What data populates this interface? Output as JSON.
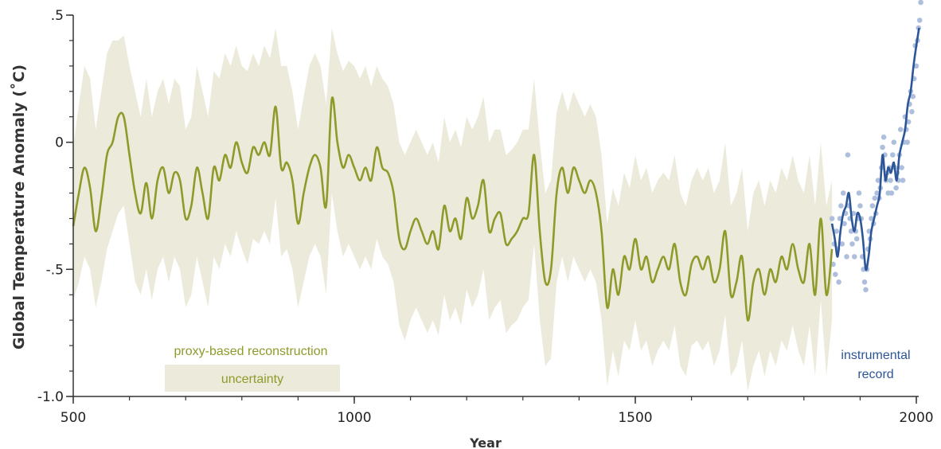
{
  "chart_data": {
    "type": "line",
    "title": "",
    "xlabel": "Year",
    "ylabel": "Global Temperature Anomaly (˚C)",
    "xlim": [
      500,
      2010
    ],
    "ylim": [
      -1.0,
      0.5
    ],
    "x_ticks": [
      500,
      1000,
      1500,
      2000
    ],
    "x_tick_labels": [
      "500",
      "1000",
      "1500",
      "2000"
    ],
    "y_ticks": [
      0.5,
      0,
      -0.5,
      -1.0
    ],
    "y_tick_labels": [
      ".5",
      "0",
      "-.5",
      "-1.0"
    ],
    "grid": false,
    "colors": {
      "proxy": "#8f9a2a",
      "uncertainty": "#ecebdb",
      "instrumental": "#2c5697",
      "instrumental_points": "#aebfde",
      "axis": "#333333"
    },
    "series": [
      {
        "name": "proxy-based reconstruction",
        "kind": "line",
        "x": [
          500,
          510,
          520,
          530,
          540,
          550,
          560,
          570,
          580,
          590,
          600,
          610,
          620,
          630,
          640,
          650,
          660,
          670,
          680,
          690,
          700,
          710,
          720,
          730,
          740,
          750,
          760,
          770,
          780,
          790,
          800,
          810,
          820,
          830,
          840,
          850,
          860,
          870,
          880,
          890,
          900,
          910,
          920,
          930,
          940,
          950,
          960,
          970,
          980,
          990,
          1000,
          1010,
          1020,
          1030,
          1040,
          1050,
          1060,
          1070,
          1080,
          1090,
          1100,
          1110,
          1120,
          1130,
          1140,
          1150,
          1160,
          1170,
          1180,
          1190,
          1200,
          1210,
          1220,
          1230,
          1240,
          1250,
          1260,
          1270,
          1280,
          1290,
          1300,
          1310,
          1320,
          1330,
          1340,
          1350,
          1360,
          1370,
          1380,
          1390,
          1400,
          1410,
          1420,
          1430,
          1440,
          1450,
          1460,
          1470,
          1480,
          1490,
          1500,
          1510,
          1520,
          1530,
          1540,
          1550,
          1560,
          1570,
          1580,
          1590,
          1600,
          1610,
          1620,
          1630,
          1640,
          1650,
          1660,
          1670,
          1680,
          1690,
          1700,
          1710,
          1720,
          1730,
          1740,
          1750,
          1760,
          1770,
          1780,
          1790,
          1800,
          1810,
          1820,
          1830,
          1840,
          1850
        ],
        "y": [
          -0.33,
          -0.2,
          -0.1,
          -0.18,
          -0.35,
          -0.22,
          -0.05,
          0.0,
          0.1,
          0.1,
          -0.05,
          -0.2,
          -0.28,
          -0.16,
          -0.3,
          -0.15,
          -0.1,
          -0.2,
          -0.12,
          -0.15,
          -0.3,
          -0.25,
          -0.1,
          -0.2,
          -0.3,
          -0.1,
          -0.15,
          -0.05,
          -0.1,
          0.0,
          -0.08,
          -0.12,
          -0.02,
          -0.05,
          0.0,
          -0.05,
          0.14,
          -0.1,
          -0.08,
          -0.15,
          -0.32,
          -0.2,
          -0.1,
          -0.05,
          -0.1,
          -0.25,
          0.17,
          0.0,
          -0.1,
          -0.05,
          -0.1,
          -0.15,
          -0.1,
          -0.15,
          -0.02,
          -0.1,
          -0.12,
          -0.2,
          -0.38,
          -0.42,
          -0.35,
          -0.3,
          -0.35,
          -0.4,
          -0.35,
          -0.42,
          -0.25,
          -0.35,
          -0.3,
          -0.38,
          -0.22,
          -0.3,
          -0.25,
          -0.15,
          -0.35,
          -0.3,
          -0.28,
          -0.4,
          -0.38,
          -0.35,
          -0.3,
          -0.28,
          -0.05,
          -0.35,
          -0.55,
          -0.5,
          -0.2,
          -0.1,
          -0.2,
          -0.1,
          -0.15,
          -0.2,
          -0.15,
          -0.2,
          -0.35,
          -0.65,
          -0.5,
          -0.6,
          -0.45,
          -0.5,
          -0.38,
          -0.5,
          -0.45,
          -0.55,
          -0.5,
          -0.45,
          -0.5,
          -0.4,
          -0.55,
          -0.6,
          -0.48,
          -0.45,
          -0.5,
          -0.45,
          -0.55,
          -0.5,
          -0.35,
          -0.6,
          -0.55,
          -0.45,
          -0.7,
          -0.55,
          -0.5,
          -0.6,
          -0.5,
          -0.55,
          -0.45,
          -0.5,
          -0.4,
          -0.5,
          -0.55,
          -0.4,
          -0.6,
          -0.3,
          -0.6,
          -0.42
        ],
        "upper": [
          -0.02,
          0.15,
          0.3,
          0.25,
          0.05,
          0.2,
          0.35,
          0.4,
          0.4,
          0.42,
          0.3,
          0.2,
          0.1,
          0.25,
          0.1,
          0.2,
          0.25,
          0.15,
          0.25,
          0.22,
          0.05,
          0.1,
          0.3,
          0.2,
          0.1,
          0.28,
          0.25,
          0.35,
          0.3,
          0.38,
          0.3,
          0.28,
          0.35,
          0.3,
          0.38,
          0.33,
          0.45,
          0.3,
          0.3,
          0.2,
          0.05,
          0.18,
          0.3,
          0.35,
          0.3,
          0.15,
          0.45,
          0.35,
          0.28,
          0.32,
          0.3,
          0.25,
          0.3,
          0.22,
          0.3,
          0.25,
          0.22,
          0.15,
          0.0,
          -0.05,
          0.0,
          0.05,
          0.0,
          -0.05,
          0.0,
          -0.08,
          0.1,
          0.0,
          0.05,
          -0.02,
          0.1,
          0.05,
          0.1,
          0.18,
          0.0,
          0.05,
          0.05,
          -0.05,
          -0.03,
          0.0,
          0.05,
          0.05,
          0.25,
          0.0,
          -0.2,
          -0.15,
          0.12,
          0.2,
          0.12,
          0.2,
          0.15,
          0.1,
          0.15,
          0.1,
          -0.05,
          -0.32,
          -0.18,
          -0.25,
          -0.12,
          -0.18,
          -0.05,
          -0.15,
          -0.1,
          -0.2,
          -0.15,
          -0.12,
          -0.15,
          -0.05,
          -0.2,
          -0.25,
          -0.15,
          -0.1,
          -0.15,
          -0.1,
          -0.2,
          -0.15,
          0.0,
          -0.25,
          -0.2,
          -0.1,
          -0.35,
          -0.2,
          -0.15,
          -0.25,
          -0.15,
          -0.2,
          -0.1,
          -0.15,
          -0.05,
          -0.15,
          -0.2,
          -0.05,
          -0.25,
          0.0,
          -0.25,
          -0.15
        ],
        "lower": [
          -0.62,
          -0.55,
          -0.45,
          -0.5,
          -0.65,
          -0.55,
          -0.42,
          -0.35,
          -0.28,
          -0.25,
          -0.4,
          -0.55,
          -0.6,
          -0.5,
          -0.62,
          -0.5,
          -0.45,
          -0.55,
          -0.45,
          -0.5,
          -0.65,
          -0.6,
          -0.45,
          -0.55,
          -0.65,
          -0.45,
          -0.5,
          -0.4,
          -0.45,
          -0.35,
          -0.42,
          -0.48,
          -0.38,
          -0.4,
          -0.35,
          -0.4,
          -0.22,
          -0.45,
          -0.42,
          -0.5,
          -0.65,
          -0.55,
          -0.45,
          -0.4,
          -0.45,
          -0.6,
          -0.2,
          -0.35,
          -0.45,
          -0.4,
          -0.45,
          -0.5,
          -0.45,
          -0.5,
          -0.38,
          -0.45,
          -0.48,
          -0.55,
          -0.72,
          -0.78,
          -0.7,
          -0.65,
          -0.7,
          -0.75,
          -0.7,
          -0.76,
          -0.6,
          -0.7,
          -0.65,
          -0.72,
          -0.58,
          -0.65,
          -0.6,
          -0.5,
          -0.7,
          -0.65,
          -0.62,
          -0.75,
          -0.72,
          -0.7,
          -0.65,
          -0.62,
          -0.4,
          -0.7,
          -0.88,
          -0.85,
          -0.55,
          -0.45,
          -0.55,
          -0.45,
          -0.5,
          -0.55,
          -0.5,
          -0.55,
          -0.7,
          -0.96,
          -0.82,
          -0.92,
          -0.78,
          -0.82,
          -0.7,
          -0.82,
          -0.78,
          -0.88,
          -0.82,
          -0.78,
          -0.82,
          -0.72,
          -0.88,
          -0.92,
          -0.8,
          -0.78,
          -0.82,
          -0.78,
          -0.88,
          -0.82,
          -0.68,
          -0.92,
          -0.88,
          -0.78,
          -0.98,
          -0.88,
          -0.82,
          -0.92,
          -0.82,
          -0.88,
          -0.78,
          -0.82,
          -0.72,
          -0.82,
          -0.88,
          -0.72,
          -0.92,
          -0.62,
          -0.92,
          -0.7
        ]
      },
      {
        "name": "instrumental record",
        "kind": "line",
        "x": [
          1850,
          1855,
          1860,
          1865,
          1870,
          1875,
          1880,
          1885,
          1890,
          1895,
          1900,
          1905,
          1910,
          1915,
          1920,
          1925,
          1930,
          1935,
          1940,
          1945,
          1950,
          1955,
          1960,
          1965,
          1970,
          1975,
          1980,
          1985,
          1990,
          1995,
          2000,
          2005
        ],
        "y": [
          -0.32,
          -0.38,
          -0.45,
          -0.35,
          -0.28,
          -0.25,
          -0.2,
          -0.3,
          -0.35,
          -0.28,
          -0.3,
          -0.38,
          -0.5,
          -0.45,
          -0.35,
          -0.3,
          -0.25,
          -0.2,
          -0.05,
          -0.15,
          -0.1,
          -0.12,
          -0.08,
          -0.15,
          -0.05,
          0.0,
          0.05,
          0.15,
          0.2,
          0.3,
          0.38,
          0.45
        ]
      },
      {
        "name": "instrumental points",
        "kind": "scatter",
        "x": [
          1850,
          1852,
          1854,
          1856,
          1858,
          1860,
          1862,
          1864,
          1866,
          1868,
          1870,
          1872,
          1874,
          1876,
          1878,
          1880,
          1882,
          1884,
          1886,
          1888,
          1890,
          1892,
          1894,
          1896,
          1898,
          1900,
          1902,
          1904,
          1906,
          1908,
          1910,
          1912,
          1914,
          1916,
          1918,
          1920,
          1922,
          1924,
          1926,
          1928,
          1930,
          1932,
          1934,
          1936,
          1938,
          1940,
          1942,
          1944,
          1946,
          1948,
          1950,
          1952,
          1954,
          1956,
          1958,
          1960,
          1962,
          1964,
          1966,
          1968,
          1970,
          1972,
          1974,
          1976,
          1978,
          1980,
          1982,
          1984,
          1986,
          1988,
          1990,
          1992,
          1994,
          1996,
          1998,
          2000,
          2002,
          2004,
          2006,
          2008
        ],
        "y": [
          -0.3,
          -0.48,
          -0.4,
          -0.52,
          -0.35,
          -0.42,
          -0.55,
          -0.3,
          -0.25,
          -0.4,
          -0.2,
          -0.32,
          -0.28,
          -0.45,
          -0.05,
          -0.25,
          -0.3,
          -0.35,
          -0.4,
          -0.28,
          -0.45,
          -0.35,
          -0.38,
          -0.3,
          -0.2,
          -0.25,
          -0.3,
          -0.45,
          -0.5,
          -0.55,
          -0.58,
          -0.5,
          -0.42,
          -0.35,
          -0.38,
          -0.3,
          -0.25,
          -0.32,
          -0.22,
          -0.28,
          -0.2,
          -0.15,
          -0.22,
          -0.18,
          -0.1,
          -0.02,
          0.02,
          -0.05,
          -0.15,
          -0.12,
          -0.2,
          -0.1,
          -0.15,
          -0.2,
          -0.05,
          0.0,
          -0.1,
          -0.18,
          -0.12,
          -0.15,
          -0.05,
          0.05,
          -0.1,
          -0.15,
          0.0,
          0.1,
          0.05,
          0.0,
          0.08,
          0.15,
          0.2,
          0.12,
          0.18,
          0.25,
          0.38,
          0.3,
          0.4,
          0.45,
          0.48,
          0.55
        ]
      }
    ],
    "legend": {
      "placement": "bottom-left",
      "line_label": "proxy-based reconstruction",
      "band_label": "uncertainty",
      "instrumental_label_line1": "instrumental",
      "instrumental_label_line2": "record"
    }
  }
}
